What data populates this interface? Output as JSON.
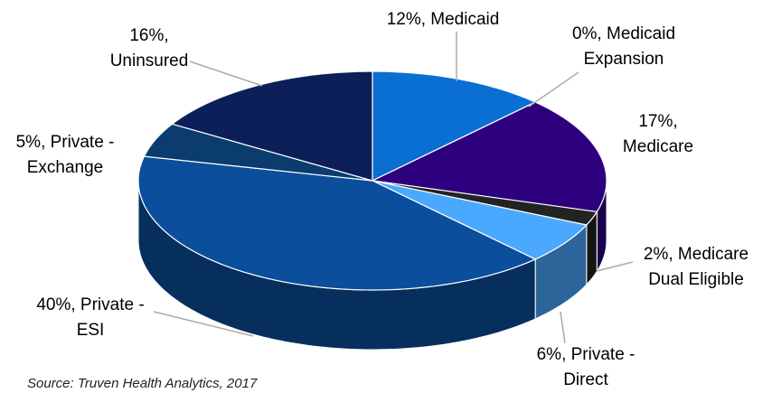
{
  "chart_data": {
    "type": "pie3d",
    "values": [
      12,
      0,
      17,
      2,
      6,
      40,
      5,
      16
    ],
    "value_labels": [
      [
        "12%, Medicaid"
      ],
      [
        "0%, Medicaid",
        "Expansion"
      ],
      [
        "17%,",
        "Medicare"
      ],
      [
        "2%, Medicare",
        "Dual Eligible"
      ],
      [
        "6%, Private -",
        "Direct"
      ],
      [
        "40%, Private -",
        "ESI"
      ],
      [
        "5%, Private -",
        "Exchange"
      ],
      [
        "16%,",
        "Uninsured"
      ]
    ],
    "colors": [
      "#0a6fd2",
      "#0a4aa0",
      "#2c007e",
      "#232323",
      "#4aa9ff",
      "#0a4e9c",
      "#0b3c6e",
      "#0c1f58"
    ],
    "caption": "Source: Truven Health Analytics, 2017"
  }
}
